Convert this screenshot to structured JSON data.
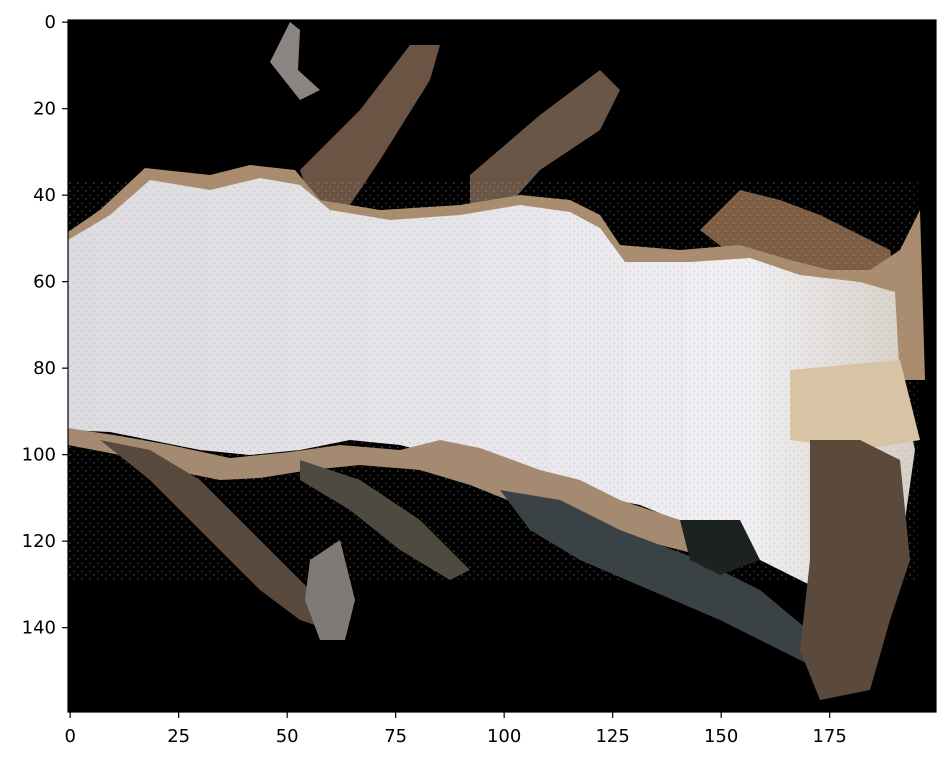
{
  "figure": {
    "type": "image",
    "description_free": true,
    "colormap_regions": {
      "background": "#000000",
      "floor": "#d9d8dc",
      "wall": "#a58a6d",
      "shadow": "#3a3228"
    }
  },
  "chart_data": {
    "type": "heatmap",
    "title": "",
    "xlabel": "",
    "ylabel": "",
    "xlim": [
      0,
      199
    ],
    "ylim": [
      159,
      0
    ],
    "xticks": [
      0,
      25,
      50,
      75,
      100,
      125,
      150,
      175
    ],
    "yticks": [
      0,
      20,
      40,
      60,
      80,
      100,
      120,
      140
    ],
    "grid": false
  }
}
